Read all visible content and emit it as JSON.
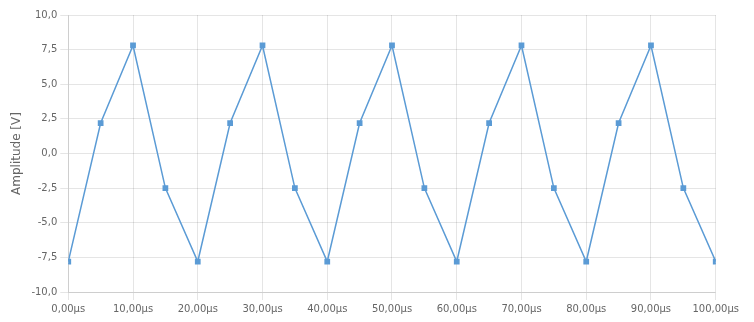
{
  "chart_data": {
    "type": "line",
    "ylabel": "Amplitude [V]",
    "x": [
      0,
      5,
      10,
      15,
      20,
      25,
      30,
      35,
      40,
      45,
      50,
      55,
      60,
      65,
      70,
      75,
      80,
      85,
      90,
      95,
      100
    ],
    "values": [
      -7.8,
      2.2,
      7.8,
      -2.5,
      -7.8,
      2.2,
      7.8,
      -2.5,
      -7.8,
      2.2,
      7.8,
      -2.5,
      -7.8,
      2.2,
      7.8,
      -2.5,
      -7.8,
      2.2,
      7.8,
      -2.5,
      -7.8
    ],
    "color": "#5b9bd5",
    "marker": "square",
    "xlim": [
      0,
      100
    ],
    "ylim": [
      -10,
      10
    ],
    "xticks": [
      {
        "value": 0,
        "label": "0,00µs"
      },
      {
        "value": 10,
        "label": "10,00µs"
      },
      {
        "value": 20,
        "label": "20,00µs"
      },
      {
        "value": 30,
        "label": "30,00µs"
      },
      {
        "value": 40,
        "label": "40,00µs"
      },
      {
        "value": 50,
        "label": "50,00µs"
      },
      {
        "value": 60,
        "label": "60,00µs"
      },
      {
        "value": 70,
        "label": "70,00µs"
      },
      {
        "value": 80,
        "label": "80,00µs"
      },
      {
        "value": 90,
        "label": "90,00µs"
      },
      {
        "value": 100,
        "label": "100,00µs"
      }
    ],
    "yticks": [
      {
        "value": -10.0,
        "label": "-10,0"
      },
      {
        "value": -7.5,
        "label": "-7,5"
      },
      {
        "value": -5.0,
        "label": "-5,0"
      },
      {
        "value": -2.5,
        "label": "-2,5"
      },
      {
        "value": 0.0,
        "label": "0,0"
      },
      {
        "value": 2.5,
        "label": "2,5"
      },
      {
        "value": 5.0,
        "label": "5,0"
      },
      {
        "value": 7.5,
        "label": "7,5"
      },
      {
        "value": 10.0,
        "label": "10,0"
      }
    ],
    "grid": true
  }
}
